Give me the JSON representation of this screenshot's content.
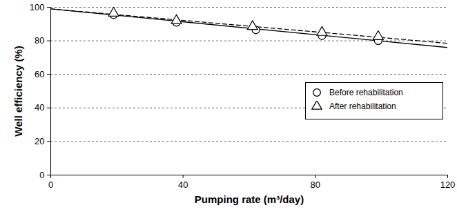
{
  "chart_data": {
    "type": "scatter",
    "x_label": "Pumping rate (m³/day)",
    "y_label": "Well efficiency (%)",
    "xlim": [
      0,
      120
    ],
    "xticks": [
      0,
      40,
      80,
      120
    ],
    "ylim": [
      0,
      100
    ],
    "yticks": [
      0,
      20,
      40,
      60,
      80,
      100
    ],
    "grid": "y",
    "legend": "right",
    "series": [
      {
        "name": "Before rehabilitation",
        "color": "#000000",
        "marker": "circle",
        "line_style": "solid",
        "x": [
          19,
          38,
          62,
          82,
          99
        ],
        "values": [
          95.5,
          91,
          86.5,
          83,
          80
        ],
        "trend": {
          "x": [
            0,
            120
          ],
          "values": [
            99,
            76
          ]
        }
      },
      {
        "name": "After rehabilitation",
        "color": "#000000",
        "marker": "triangle",
        "line_style": "dashed",
        "x": [
          19,
          38,
          61,
          82,
          99
        ],
        "values": [
          96.5,
          92,
          88.5,
          85,
          82.5
        ],
        "trend": {
          "x": [
            0,
            120
          ],
          "values": [
            99,
            78.5
          ]
        }
      }
    ]
  }
}
